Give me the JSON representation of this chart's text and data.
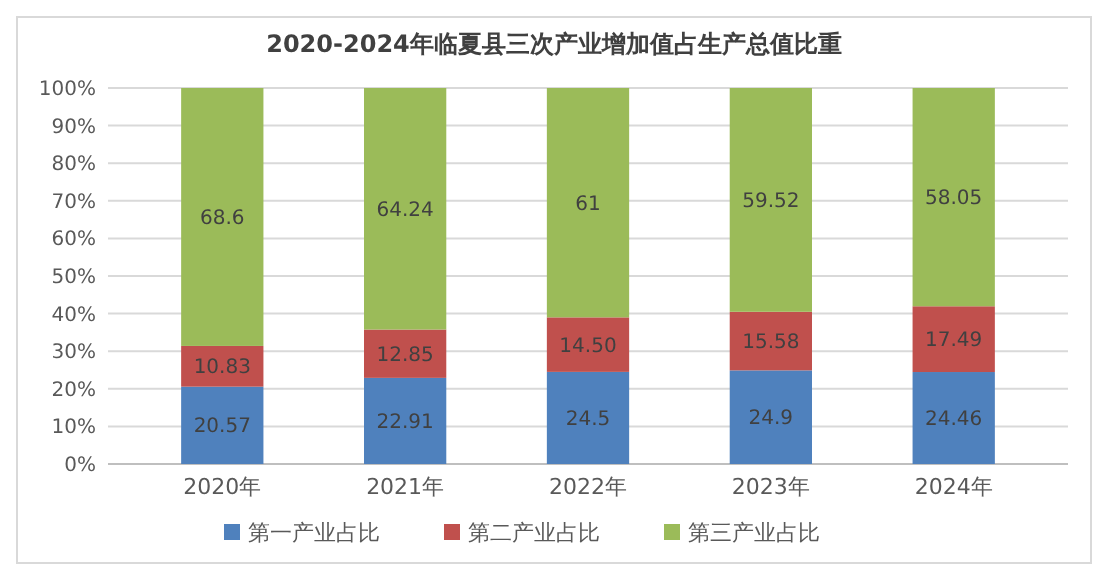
{
  "chart_data": {
    "type": "bar",
    "stacked": true,
    "title": "2020-2024年临夏县三次产业增加值占生产总值比重",
    "categories": [
      "2020年",
      "2021年",
      "2022年",
      "2023年",
      "2024年"
    ],
    "series": [
      {
        "name": "第一产业占比",
        "color": "#4f81bd",
        "values": [
          20.57,
          22.91,
          24.5,
          24.9,
          24.46
        ],
        "value_labels": [
          "20.57",
          "22.91",
          "24.5",
          "24.9",
          "24.46"
        ]
      },
      {
        "name": "第二产业占比",
        "color": "#c0504d",
        "values": [
          10.83,
          12.85,
          14.5,
          15.58,
          17.49
        ],
        "value_labels": [
          "10.83",
          "12.85",
          "14.50",
          "15.58",
          "17.49"
        ]
      },
      {
        "name": "第三产业占比",
        "color": "#9bbb59",
        "values": [
          68.6,
          64.24,
          61,
          59.52,
          58.05
        ],
        "value_labels": [
          "68.6",
          "64.24",
          "61",
          "59.52",
          "58.05"
        ]
      }
    ],
    "ylim": [
      0,
      100
    ],
    "yticks": [
      {
        "value": 0,
        "label": "0%"
      },
      {
        "value": 10,
        "label": "10%"
      },
      {
        "value": 20,
        "label": "20%"
      },
      {
        "value": 30,
        "label": "30%"
      },
      {
        "value": 40,
        "label": "40%"
      },
      {
        "value": 50,
        "label": "50%"
      },
      {
        "value": 60,
        "label": "60%"
      },
      {
        "value": 70,
        "label": "70%"
      },
      {
        "value": 80,
        "label": "80%"
      },
      {
        "value": 90,
        "label": "90%"
      },
      {
        "value": 100,
        "label": "100%"
      }
    ],
    "grid": "y",
    "legend": "bottom"
  }
}
